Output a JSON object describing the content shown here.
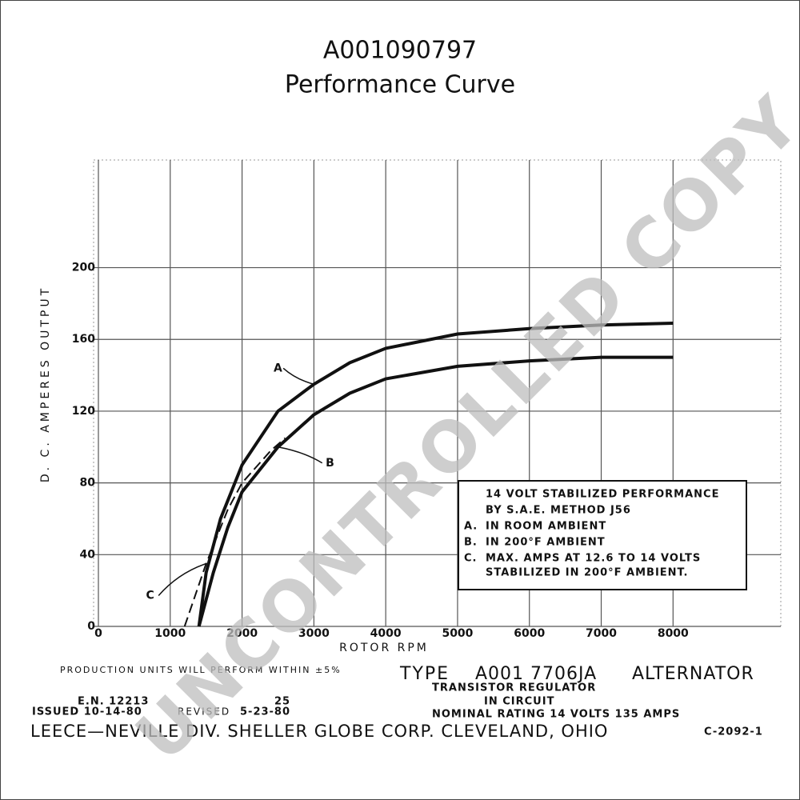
{
  "chart_data": {
    "type": "line",
    "title": "A001090797",
    "subtitle": "Performance Curve",
    "xlabel": "ROTOR RPM",
    "ylabel": "D. C. AMPERES OUTPUT",
    "xlim": [
      0,
      9500
    ],
    "ylim": [
      0,
      260
    ],
    "xticks": [
      0,
      1000,
      2000,
      3000,
      4000,
      5000,
      6000,
      7000,
      8000
    ],
    "yticks": [
      0,
      40,
      80,
      120,
      160,
      200
    ],
    "grid": true,
    "series": [
      {
        "name": "A",
        "color": "#111111",
        "style": "solid",
        "x": [
          1400,
          1500,
          1700,
          2000,
          2500,
          3000,
          3500,
          4000,
          5000,
          6000,
          7000,
          8000
        ],
        "values": [
          0,
          30,
          60,
          90,
          120,
          135,
          147,
          155,
          163,
          166,
          168,
          169
        ]
      },
      {
        "name": "B",
        "color": "#111111",
        "style": "solid",
        "x": [
          1400,
          1600,
          1800,
          2000,
          2500,
          3000,
          3500,
          4000,
          5000,
          6000,
          7000,
          8000
        ],
        "values": [
          0,
          30,
          55,
          75,
          100,
          118,
          130,
          138,
          145,
          148,
          150,
          150
        ]
      },
      {
        "name": "C",
        "color": "#111111",
        "style": "dashed",
        "x": [
          1200,
          1500,
          1800,
          2000,
          2400,
          2600
        ],
        "values": [
          0,
          35,
          65,
          80,
          98,
          105
        ]
      }
    ],
    "legend_box": {
      "heading": [
        "14 VOLT STABILIZED PERFORMANCE",
        "BY S.A.E. METHOD J56"
      ],
      "items": [
        {
          "key": "A.",
          "text": "IN ROOM AMBIENT"
        },
        {
          "key": "B.",
          "text": "IN 200°F AMBIENT"
        },
        {
          "key": "C.",
          "text": "MAX. AMPS AT 12.6 TO 14 VOLTS"
        }
      ],
      "continuation": "STABILIZED IN 200°F AMBIENT."
    },
    "footer": {
      "production": "PRODUCTION UNITS WILL PERFORM WITHIN ±5%",
      "type_word": "TYPE",
      "model": "A001 7706JA",
      "kind": "ALTERNATOR",
      "regulator": "TRANSISTOR REGULATOR",
      "in_circuit": "IN CIRCUIT",
      "en": "E.N. 12213",
      "issued": "ISSUED 10-14-80",
      "revised": "REVISED",
      "revised_en": "25",
      "revised_date": "5-23-80",
      "rating": "NOMINAL RATING 14 VOLTS 135 AMPS",
      "company": "LEECE—NEVILLE DIV. SHELLER GLOBE CORP. CLEVELAND, OHIO",
      "curve_no": "C-2092-1"
    },
    "watermark": "UNCONTROLLED COPY"
  }
}
